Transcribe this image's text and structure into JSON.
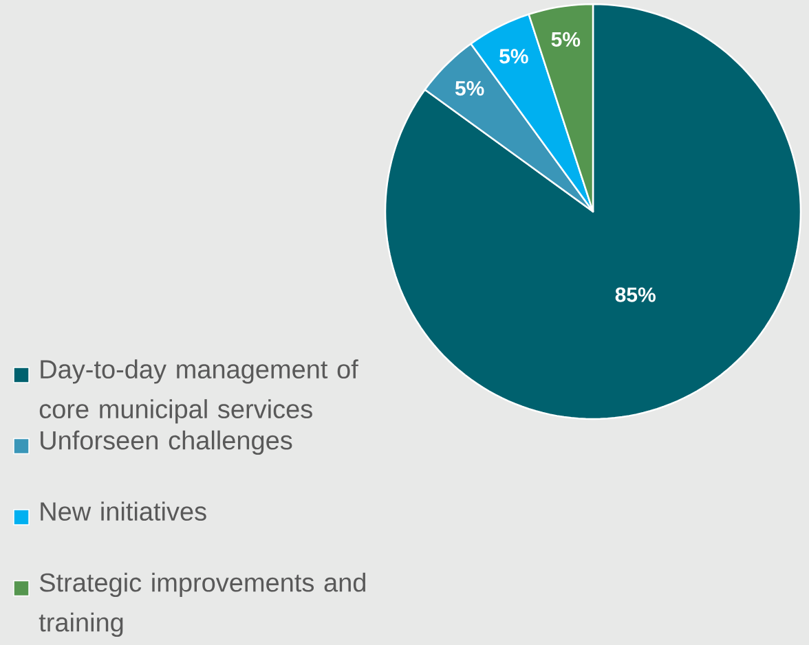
{
  "chart_data": {
    "type": "pie",
    "categories": [
      "Day-to-day management of core municipal services",
      "Unforseen challenges",
      "New initiatives",
      "Strategic improvements and training"
    ],
    "values": [
      85,
      5,
      5,
      5
    ],
    "colors": [
      "#00616e",
      "#3a96b8",
      "#00b0f0",
      "#55964f"
    ],
    "value_labels": [
      "85%",
      "5%",
      "5%",
      "5%"
    ],
    "legend": "left"
  }
}
